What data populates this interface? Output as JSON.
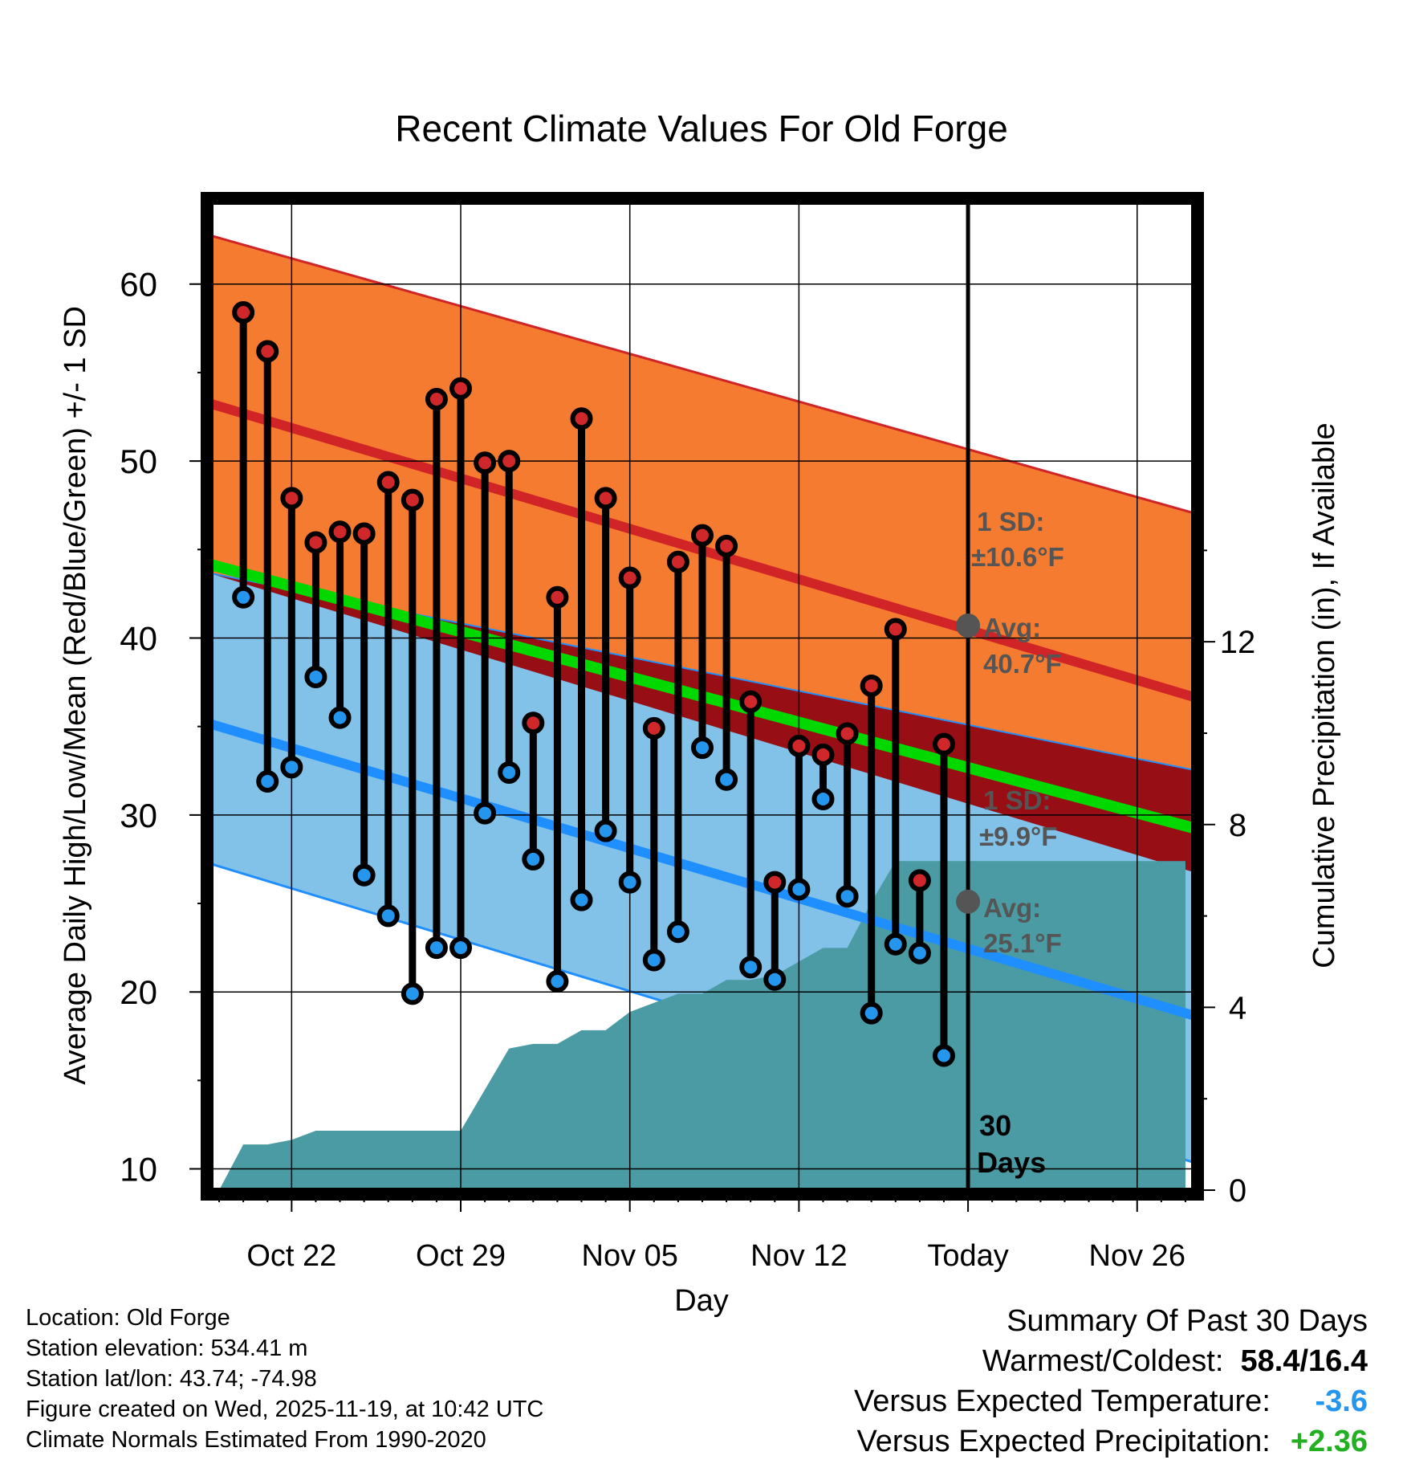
{
  "chart_data": {
    "type": "climate-temperature-range-with-precipitation",
    "title": "Recent Climate Values For Old Forge",
    "xlabel": "Day",
    "ylabel_left": "Average Daily High/Low/Mean (Red/Blue/Green) +/- 1 SD",
    "ylabel_right": "Cumulative Precipitation (in), If Available",
    "ylim_left": [
      8.8,
      63.8
    ],
    "left_ticks": [
      "10",
      "20",
      "30",
      "40",
      "50",
      "60"
    ],
    "ylim_right": [
      0,
      21.3
    ],
    "right_ticks": [
      "0",
      "4",
      "8",
      "12"
    ],
    "x_tick_labels": [
      "Oct 22",
      "Oct 29",
      "Nov 05",
      "Nov 12",
      "Today",
      "Nov 26"
    ],
    "days_offset_of_ticks": [
      -28,
      -21,
      -14,
      -7,
      0,
      7
    ],
    "x_day_range": [
      -31.5,
      9.5
    ],
    "observed": {
      "days": [
        -30,
        -29,
        -28,
        -27,
        -26,
        -25,
        -24,
        -23,
        -22,
        -21,
        -20,
        -19,
        -18,
        -17,
        -16,
        -15,
        -14,
        -13,
        -12,
        -11,
        -10,
        -9,
        -8,
        -7,
        -6,
        -5,
        -4,
        -3,
        -2,
        -1
      ],
      "high": [
        58.4,
        56.2,
        47.9,
        45.4,
        46.0,
        45.9,
        48.8,
        47.8,
        53.5,
        54.1,
        49.9,
        50.0,
        35.2,
        42.3,
        52.4,
        47.9,
        43.4,
        34.9,
        44.3,
        45.8,
        45.2,
        36.4,
        26.2,
        33.9,
        33.4,
        34.6,
        37.3,
        40.5,
        26.3,
        34.0
      ],
      "low": [
        42.3,
        31.9,
        32.7,
        37.8,
        35.5,
        26.6,
        24.3,
        19.9,
        22.5,
        22.5,
        30.1,
        32.4,
        27.5,
        20.6,
        25.2,
        29.1,
        26.2,
        21.8,
        23.4,
        33.8,
        32.0,
        21.4,
        20.7,
        25.8,
        30.9,
        25.4,
        18.8,
        22.7,
        22.2,
        16.4
      ]
    },
    "normals": {
      "high_start": 53.3,
      "high_end": 36.6,
      "high_plus_sd_start": 62.8,
      "high_plus_sd_end": 47.0,
      "high_minus_sd_start": 43.6,
      "high_minus_sd_end": 26.7,
      "low_start": 35.2,
      "low_end": 18.6,
      "low_plus_sd_start": 43.7,
      "low_plus_sd_end": 32.5,
      "low_minus_sd_start": 27.3,
      "low_minus_sd_end": 10.3,
      "mean_start": 44.2,
      "mean_end": 29.2
    },
    "precipitation": {
      "days": [
        -31,
        -30,
        -29,
        -28,
        -27,
        -26,
        -25,
        -24,
        -23,
        -22,
        -21,
        -20,
        -19,
        -18,
        -17,
        -16,
        -15,
        -14,
        -13,
        -12,
        -11,
        -10,
        -9,
        -8,
        -7,
        -6,
        -5,
        -4,
        -3,
        -2,
        -1,
        0,
        9
      ],
      "cumulative": [
        0.0,
        1.0,
        1.0,
        1.1,
        1.3,
        1.3,
        1.3,
        1.3,
        1.3,
        1.3,
        1.3,
        2.2,
        3.1,
        3.2,
        3.2,
        3.5,
        3.5,
        3.9,
        4.1,
        4.3,
        4.3,
        4.6,
        4.6,
        4.7,
        5.0,
        5.3,
        5.3,
        6.3,
        7.2,
        7.2,
        7.2,
        7.2,
        7.2
      ]
    },
    "annotations": {
      "today_label": "30",
      "today_label_2": "Days",
      "high_sd_label": "1 SD:",
      "high_sd_value": "±10.6°F",
      "high_avg_label": "Avg:",
      "high_avg_value": "40.7°F",
      "high_avg_today": 40.7,
      "low_sd_label": "1 SD:",
      "low_sd_value": "±9.9°F",
      "low_avg_label": "Avg:",
      "low_avg_value": "25.1°F",
      "low_avg_today": 25.1
    },
    "colors": {
      "high_band": "#f47b2f",
      "high_line": "#d02427",
      "low_band": "#82c1e8",
      "low_line": "#1f8fff",
      "overlap": "#970f15",
      "mean_line": "#00d800",
      "precip": "#4a9ba3",
      "high_dot": "#d0282a",
      "low_dot": "#2596ee",
      "annotation": "#555555"
    }
  },
  "info": {
    "location": "Location: Old Forge",
    "elevation": "Station elevation: 534.41 m",
    "latlon": "Station lat/lon: 43.74; -74.98",
    "created": "Figure created on Wed, 2025-11-19, at 10:42 UTC",
    "normals": "Climate Normals Estimated From 1990-2020"
  },
  "summary": {
    "title": "Summary Of Past 30 Days",
    "warmest_label": "Warmest/Coldest:",
    "warmest_value": "58.4/16.4",
    "temp_label": "Versus Expected Temperature:",
    "temp_value": "-3.6",
    "temp_color": "#2596ee",
    "precip_label": "Versus Expected Precipitation:",
    "precip_value": "+2.36",
    "precip_color": "#22b022"
  }
}
